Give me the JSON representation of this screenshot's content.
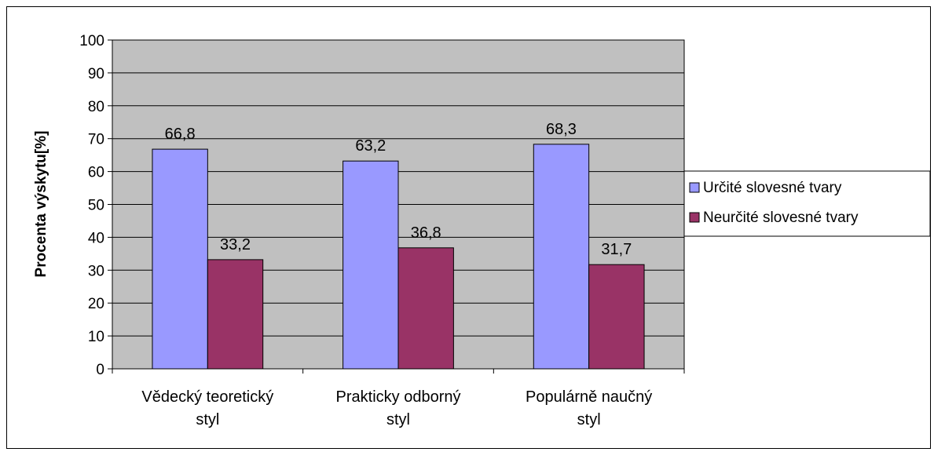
{
  "chart_data": {
    "type": "bar",
    "title": "",
    "xlabel": "",
    "ylabel": "Procenta výskytu[%]",
    "ylim": [
      0,
      100
    ],
    "ytick_step": 10,
    "grid": true,
    "legend_position": "right",
    "categories": [
      [
        "Vědecký teoretický",
        "styl"
      ],
      [
        "Prakticky odborný",
        "styl"
      ],
      [
        "Populárně naučný",
        "styl"
      ]
    ],
    "series": [
      {
        "name": "Určité slovesné tvary",
        "color": "#9999ff",
        "values": [
          66.8,
          63.2,
          68.3
        ],
        "labels": [
          "66,8",
          "63,2",
          "68,3"
        ]
      },
      {
        "name": "Neurčité slovesné tvary",
        "color": "#993366",
        "values": [
          33.2,
          36.8,
          31.7
        ],
        "labels": [
          "33,2",
          "36,8",
          "31,7"
        ]
      }
    ],
    "plot_background": "#c0c0c0"
  }
}
